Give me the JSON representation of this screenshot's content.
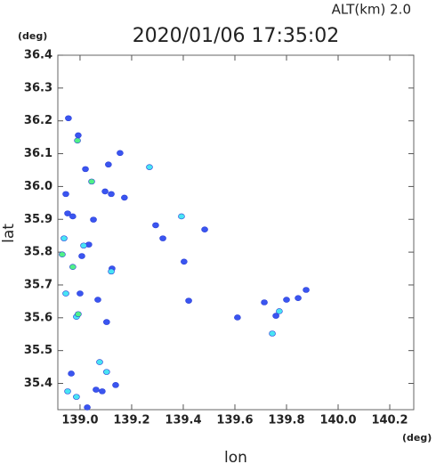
{
  "chart_data": {
    "type": "scatter",
    "title": "2020/01/06 17:35:02",
    "subtitle": "ALT(km) 2.0",
    "y_unit": "(deg)",
    "x_unit": "(deg)",
    "ylabel": "lat",
    "xlabel": "lon",
    "xlim": [
      138.914,
      140.293
    ],
    "ylim": [
      35.32,
      36.4
    ],
    "xticks": [
      {
        "value": 139.0,
        "label": "139.0"
      },
      139.2,
      139.4,
      139.6,
      139.8,
      {
        "value": 140.0,
        "label": "140.0"
      },
      140.2
    ],
    "yticks": [
      35.4,
      35.5,
      35.6,
      35.7,
      35.8,
      35.9,
      {
        "value": 36.0,
        "label": "36.0"
      },
      36.1,
      36.2,
      36.3,
      36.4
    ],
    "series": [
      {
        "color": "#3a55f0",
        "x": [
          138.955,
          138.993,
          139.11,
          139.155,
          139.021,
          139.097,
          139.121,
          139.172,
          138.945,
          138.972,
          139.052,
          139.293,
          139.321,
          139.483,
          139.007,
          139.124,
          139.403,
          139.0,
          139.069,
          139.103,
          139.421,
          139.61,
          139.714,
          139.8,
          139.845,
          139.876,
          139.759,
          138.966,
          139.062,
          139.086,
          139.138,
          139.028,
          139.034,
          138.952
        ],
        "values": [
          36.208,
          36.156,
          36.067,
          36.102,
          36.053,
          35.985,
          35.977,
          35.966,
          35.977,
          35.909,
          35.899,
          35.882,
          35.842,
          35.869,
          35.788,
          35.75,
          35.771,
          35.674,
          35.655,
          35.587,
          35.652,
          35.601,
          35.647,
          35.655,
          35.66,
          35.685,
          35.606,
          35.43,
          35.381,
          35.376,
          35.395,
          35.327,
          35.823,
          35.918
        ]
      },
      {
        "color": "#48e4f4",
        "x": [
          139.076,
          139.103,
          138.952,
          138.986,
          139.393,
          139.269,
          138.938,
          139.014,
          138.945,
          138.986,
          139.121,
          139.745,
          139.772
        ],
        "values": [
          35.465,
          35.435,
          35.376,
          35.359,
          35.909,
          36.059,
          35.842,
          35.82,
          35.674,
          35.603,
          35.741,
          35.552,
          35.62
        ]
      },
      {
        "color": "#50f088",
        "x": [
          138.99,
          139.045,
          138.931,
          138.993,
          138.972
        ],
        "values": [
          36.14,
          36.015,
          35.793,
          35.611,
          35.755
        ]
      }
    ]
  }
}
